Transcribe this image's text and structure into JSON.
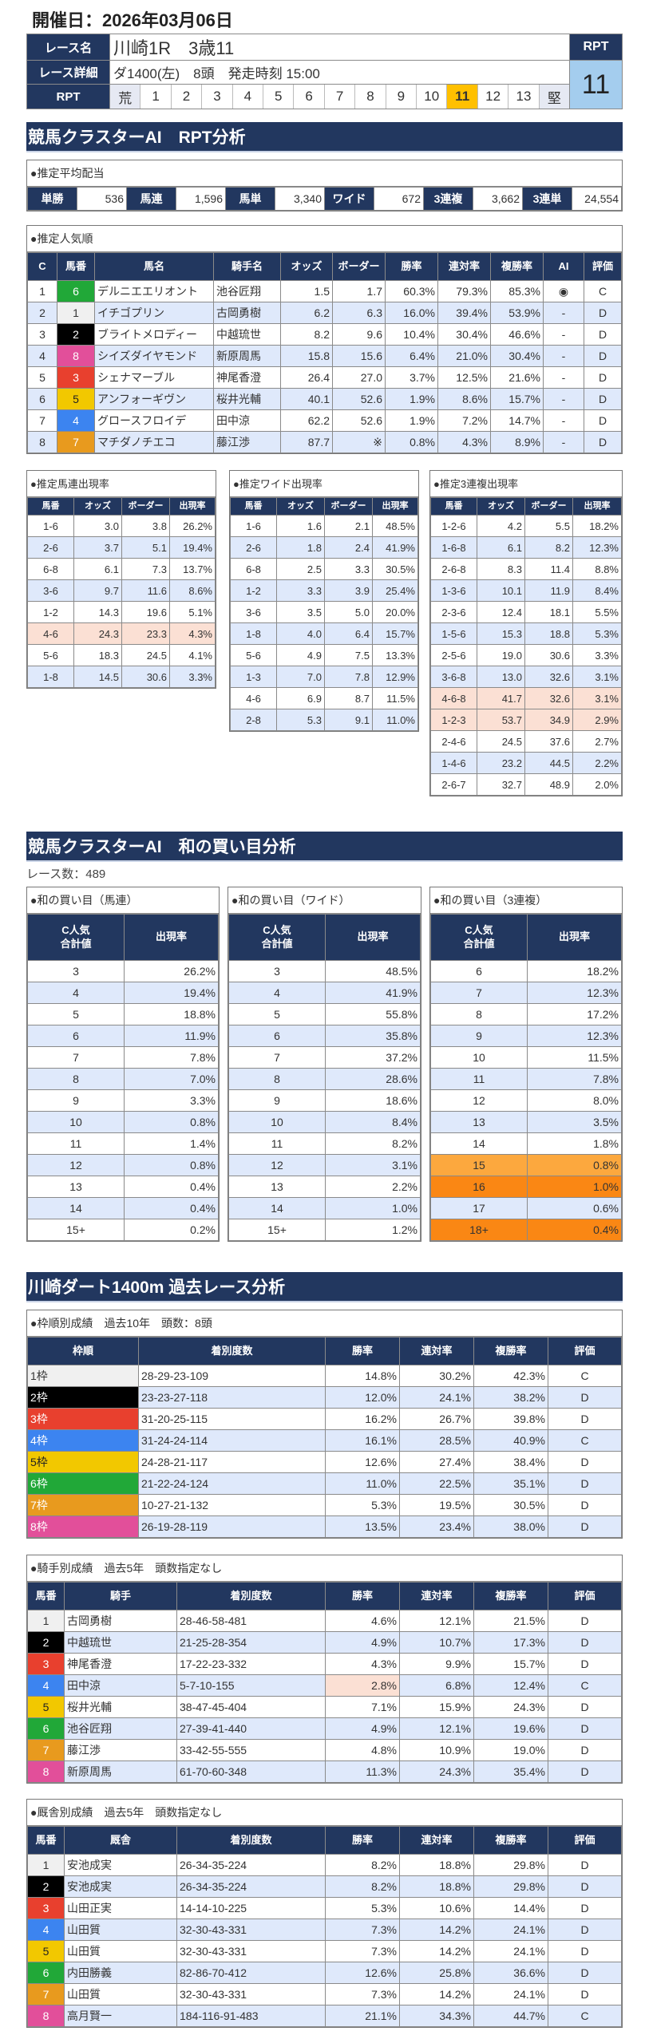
{
  "header": {
    "date_label": "開催日：2026年03月06日",
    "race_name_label": "レース名",
    "race_name": "川崎1R　3歳11",
    "race_detail_label": "レース詳細",
    "race_detail": "ダ1400(左)　8頭　発走時刻 15:00",
    "rpt_label": "RPT",
    "rpt_scale": [
      "荒",
      "1",
      "2",
      "3",
      "4",
      "5",
      "6",
      "7",
      "8",
      "9",
      "10",
      "11",
      "12",
      "13",
      "堅"
    ],
    "rpt_selected": "11",
    "rpt_head": "RPT",
    "rpt_value": "11"
  },
  "colors": {
    "navy": "#22375f",
    "stripe": "#dfe9fb",
    "highlight": "#fbe0d4",
    "rpt_selected": "#ffc000",
    "rpt_value_bg": "#a4cdee",
    "frame": [
      "#f0f0f0",
      "#000000",
      "#e8402e",
      "#3c84f0",
      "#f2c800",
      "#21a838",
      "#e89a1e",
      "#e24f9a"
    ],
    "frame_text": [
      "#333333",
      "#ffffff",
      "#ffffff",
      "#ffffff",
      "#222222",
      "#ffffff",
      "#ffffff",
      "#ffffff"
    ]
  },
  "rpt": {
    "title": "競馬クラスターAI　RPT分析",
    "payout": {
      "caption": "●推定平均配当",
      "items": [
        {
          "label": "単勝",
          "value": "536"
        },
        {
          "label": "馬連",
          "value": "1,596"
        },
        {
          "label": "馬単",
          "value": "3,340"
        },
        {
          "label": "ワイド",
          "value": "672"
        },
        {
          "label": "3連複",
          "value": "3,662"
        },
        {
          "label": "3連単",
          "value": "24,554"
        }
      ]
    },
    "popularity": {
      "caption": "●推定人気順",
      "columns": [
        "C",
        "馬番",
        "馬名",
        "騎手名",
        "オッズ",
        "ボーダー",
        "勝率",
        "連対率",
        "複勝率",
        "AI",
        "評価"
      ],
      "rows": [
        [
          "1",
          "6",
          "デルニエエリオント",
          "池谷匠翔",
          "1.5",
          "1.7",
          "60.3%",
          "79.3%",
          "85.3%",
          "◉",
          "C"
        ],
        [
          "2",
          "1",
          "イチゴプリン",
          "古岡勇樹",
          "6.2",
          "6.3",
          "16.0%",
          "39.4%",
          "53.9%",
          "-",
          "D"
        ],
        [
          "3",
          "2",
          "ブライトメロディー",
          "中越琉世",
          "8.2",
          "9.6",
          "10.4%",
          "30.4%",
          "46.6%",
          "-",
          "D"
        ],
        [
          "4",
          "8",
          "シイズダイヤモンド",
          "新原周馬",
          "15.8",
          "15.6",
          "6.4%",
          "21.0%",
          "30.4%",
          "-",
          "D"
        ],
        [
          "5",
          "3",
          "シェナマーブル",
          "神尾香澄",
          "26.4",
          "27.0",
          "3.7%",
          "12.5%",
          "21.6%",
          "-",
          "D"
        ],
        [
          "6",
          "5",
          "アンフォーギヴン",
          "桜井光輔",
          "40.1",
          "52.6",
          "1.9%",
          "8.6%",
          "15.7%",
          "-",
          "D"
        ],
        [
          "7",
          "4",
          "グロースフロイデ",
          "田中涼",
          "62.2",
          "52.6",
          "1.9%",
          "7.2%",
          "14.7%",
          "-",
          "D"
        ],
        [
          "8",
          "7",
          "マチダノチエコ",
          "藤江渉",
          "87.7",
          "※",
          "0.8%",
          "4.3%",
          "8.9%",
          "-",
          "D"
        ]
      ]
    },
    "umaren": {
      "caption": "●推定馬連出現率",
      "columns": [
        "馬番",
        "オッズ",
        "ボーダー",
        "出現率"
      ],
      "rows": [
        [
          "1-6",
          "3.0",
          "3.8",
          "26.2%"
        ],
        [
          "2-6",
          "3.7",
          "5.1",
          "19.4%"
        ],
        [
          "6-8",
          "6.1",
          "7.3",
          "13.7%"
        ],
        [
          "3-6",
          "9.7",
          "11.6",
          "8.6%"
        ],
        [
          "1-2",
          "14.3",
          "19.6",
          "5.1%"
        ],
        [
          "4-6",
          "24.3",
          "23.3",
          "4.3%"
        ],
        [
          "5-6",
          "18.3",
          "24.5",
          "4.1%"
        ],
        [
          "1-8",
          "14.5",
          "30.6",
          "3.3%"
        ]
      ],
      "highlight_rows": [
        5
      ]
    },
    "wide": {
      "caption": "●推定ワイド出現率",
      "columns": [
        "馬番",
        "オッズ",
        "ボーダー",
        "出現率"
      ],
      "rows": [
        [
          "1-6",
          "1.6",
          "2.1",
          "48.5%"
        ],
        [
          "2-6",
          "1.8",
          "2.4",
          "41.9%"
        ],
        [
          "6-8",
          "2.5",
          "3.3",
          "30.5%"
        ],
        [
          "1-2",
          "3.3",
          "3.9",
          "25.4%"
        ],
        [
          "3-6",
          "3.5",
          "5.0",
          "20.0%"
        ],
        [
          "1-8",
          "4.0",
          "6.4",
          "15.7%"
        ],
        [
          "5-6",
          "4.9",
          "7.5",
          "13.3%"
        ],
        [
          "1-3",
          "7.0",
          "7.8",
          "12.9%"
        ],
        [
          "4-6",
          "6.9",
          "8.7",
          "11.5%"
        ],
        [
          "2-8",
          "5.3",
          "9.1",
          "11.0%"
        ]
      ]
    },
    "sanrenpuku": {
      "caption": "●推定3連複出現率",
      "columns": [
        "馬番",
        "オッズ",
        "ボーダー",
        "出現率"
      ],
      "rows": [
        [
          "1-2-6",
          "4.2",
          "5.5",
          "18.2%"
        ],
        [
          "1-6-8",
          "6.1",
          "8.2",
          "12.3%"
        ],
        [
          "2-6-8",
          "8.3",
          "11.4",
          "8.8%"
        ],
        [
          "1-3-6",
          "10.1",
          "11.9",
          "8.4%"
        ],
        [
          "2-3-6",
          "12.4",
          "18.1",
          "5.5%"
        ],
        [
          "1-5-6",
          "15.3",
          "18.8",
          "5.3%"
        ],
        [
          "2-5-6",
          "19.0",
          "30.6",
          "3.3%"
        ],
        [
          "3-6-8",
          "13.0",
          "32.6",
          "3.1%"
        ],
        [
          "4-6-8",
          "41.7",
          "32.6",
          "3.1%"
        ],
        [
          "1-2-3",
          "53.7",
          "34.9",
          "2.9%"
        ],
        [
          "2-4-6",
          "24.5",
          "37.6",
          "2.7%"
        ],
        [
          "1-4-6",
          "23.2",
          "44.5",
          "2.2%"
        ],
        [
          "2-6-7",
          "32.7",
          "48.9",
          "2.0%"
        ]
      ],
      "highlight_rows": [
        8,
        9
      ]
    }
  },
  "wa": {
    "title": "競馬クラスターAI　和の買い目分析",
    "race_count": "レース数：489",
    "umaren": {
      "caption": "●和の買い目（馬連）",
      "columns": [
        "C人気\n合計値",
        "出現率"
      ],
      "rows": [
        [
          "3",
          "26.2%"
        ],
        [
          "4",
          "19.4%"
        ],
        [
          "5",
          "18.8%"
        ],
        [
          "6",
          "11.9%"
        ],
        [
          "7",
          "7.8%"
        ],
        [
          "8",
          "7.0%"
        ],
        [
          "9",
          "3.3%"
        ],
        [
          "10",
          "0.8%"
        ],
        [
          "11",
          "1.4%"
        ],
        [
          "12",
          "0.8%"
        ],
        [
          "13",
          "0.4%"
        ],
        [
          "14",
          "0.4%"
        ],
        [
          "15+",
          "0.2%"
        ]
      ]
    },
    "wide": {
      "caption": "●和の買い目（ワイド）",
      "columns": [
        "C人気\n合計値",
        "出現率"
      ],
      "rows": [
        [
          "3",
          "48.5%"
        ],
        [
          "4",
          "41.9%"
        ],
        [
          "5",
          "55.8%"
        ],
        [
          "6",
          "35.8%"
        ],
        [
          "7",
          "37.2%"
        ],
        [
          "8",
          "28.6%"
        ],
        [
          "9",
          "18.6%"
        ],
        [
          "10",
          "8.4%"
        ],
        [
          "11",
          "8.2%"
        ],
        [
          "12",
          "3.1%"
        ],
        [
          "13",
          "2.2%"
        ],
        [
          "14",
          "1.0%"
        ],
        [
          "15+",
          "1.2%"
        ]
      ]
    },
    "sanrenpuku": {
      "caption": "●和の買い目（3連複）",
      "columns": [
        "C人気\n合計値",
        "出現率"
      ],
      "rows": [
        [
          "6",
          "18.2%"
        ],
        [
          "7",
          "12.3%"
        ],
        [
          "8",
          "17.2%"
        ],
        [
          "9",
          "12.3%"
        ],
        [
          "10",
          "11.5%"
        ],
        [
          "11",
          "7.8%"
        ],
        [
          "12",
          "8.0%"
        ],
        [
          "13",
          "3.5%"
        ],
        [
          "14",
          "1.8%"
        ],
        [
          "15",
          "0.8%"
        ],
        [
          "16",
          "1.0%"
        ],
        [
          "17",
          "0.6%"
        ],
        [
          "18+",
          "0.4%"
        ]
      ],
      "row_colors": [
        {
          "row": 9,
          "color": "#fca83e"
        },
        {
          "row": 10,
          "color": "#fa8714"
        },
        {
          "row": 12,
          "color": "#fa8714"
        }
      ]
    }
  },
  "past": {
    "title": "川崎ダート1400m 過去レース分析",
    "waku": {
      "caption": "●枠順別成績　過去10年　頭数：8頭",
      "columns": [
        "枠順",
        "着別度数",
        "勝率",
        "連対率",
        "複勝率",
        "評価"
      ],
      "rows": [
        [
          "1枠",
          "28-29-23-109",
          "14.8%",
          "30.2%",
          "42.3%",
          "C"
        ],
        [
          "2枠",
          "23-23-27-118",
          "12.0%",
          "24.1%",
          "38.2%",
          "D"
        ],
        [
          "3枠",
          "31-20-25-115",
          "16.2%",
          "26.7%",
          "39.8%",
          "D"
        ],
        [
          "4枠",
          "31-24-24-114",
          "16.1%",
          "28.5%",
          "40.9%",
          "C"
        ],
        [
          "5枠",
          "24-28-21-117",
          "12.6%",
          "27.4%",
          "38.4%",
          "D"
        ],
        [
          "6枠",
          "21-22-24-124",
          "11.0%",
          "22.5%",
          "35.1%",
          "D"
        ],
        [
          "7枠",
          "10-27-21-132",
          "5.3%",
          "19.5%",
          "30.5%",
          "D"
        ],
        [
          "8枠",
          "26-19-28-119",
          "13.5%",
          "23.4%",
          "38.0%",
          "D"
        ]
      ]
    },
    "jockey": {
      "caption": "●騎手別成績　過去5年　頭数指定なし",
      "columns": [
        "馬番",
        "騎手",
        "着別度数",
        "勝率",
        "連対率",
        "複勝率",
        "評価"
      ],
      "rows": [
        [
          "1",
          "古岡勇樹",
          "28-46-58-481",
          "4.6%",
          "12.1%",
          "21.5%",
          "D"
        ],
        [
          "2",
          "中越琉世",
          "21-25-28-354",
          "4.9%",
          "10.7%",
          "17.3%",
          "D"
        ],
        [
          "3",
          "神尾香澄",
          "17-22-23-332",
          "4.3%",
          "9.9%",
          "15.7%",
          "D"
        ],
        [
          "4",
          "田中涼",
          "5-7-10-155",
          "2.8%",
          "6.8%",
          "12.4%",
          "C"
        ],
        [
          "5",
          "桜井光輔",
          "38-47-45-404",
          "7.1%",
          "15.9%",
          "24.3%",
          "D"
        ],
        [
          "6",
          "池谷匠翔",
          "27-39-41-440",
          "4.9%",
          "12.1%",
          "19.6%",
          "D"
        ],
        [
          "7",
          "藤江渉",
          "33-42-55-555",
          "4.8%",
          "10.9%",
          "19.0%",
          "D"
        ],
        [
          "8",
          "新原周馬",
          "61-70-60-348",
          "11.3%",
          "24.3%",
          "35.4%",
          "D"
        ]
      ],
      "highlight_cells": [
        [
          3,
          3
        ]
      ]
    },
    "trainer": {
      "caption": "●厩舎別成績　過去5年　頭数指定なし",
      "columns": [
        "馬番",
        "厩舎",
        "着別度数",
        "勝率",
        "連対率",
        "複勝率",
        "評価"
      ],
      "rows": [
        [
          "1",
          "安池成実",
          "26-34-35-224",
          "8.2%",
          "18.8%",
          "29.8%",
          "D"
        ],
        [
          "2",
          "安池成実",
          "26-34-35-224",
          "8.2%",
          "18.8%",
          "29.8%",
          "D"
        ],
        [
          "3",
          "山田正実",
          "14-14-10-225",
          "5.3%",
          "10.6%",
          "14.4%",
          "D"
        ],
        [
          "4",
          "山田質",
          "32-30-43-331",
          "7.3%",
          "14.2%",
          "24.1%",
          "D"
        ],
        [
          "5",
          "山田質",
          "32-30-43-331",
          "7.3%",
          "14.2%",
          "24.1%",
          "D"
        ],
        [
          "6",
          "内田勝義",
          "82-86-70-412",
          "12.6%",
          "25.8%",
          "36.6%",
          "D"
        ],
        [
          "7",
          "山田質",
          "32-30-43-331",
          "7.3%",
          "14.2%",
          "24.1%",
          "D"
        ],
        [
          "8",
          "高月賢一",
          "184-116-91-483",
          "21.1%",
          "34.3%",
          "44.7%",
          "C"
        ]
      ]
    }
  }
}
